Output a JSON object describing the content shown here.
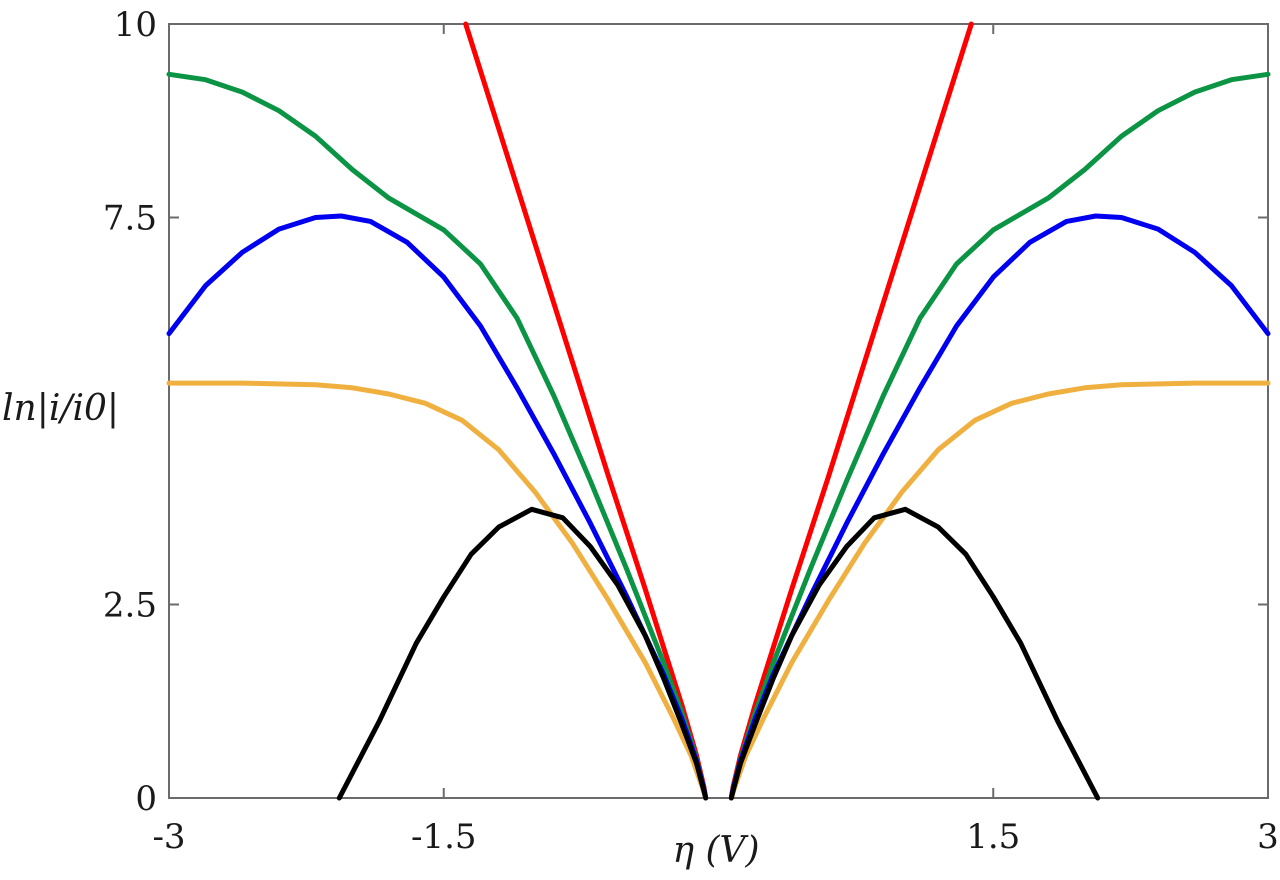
{
  "chart_data": {
    "type": "line",
    "title": "",
    "xlabel": "η  (V)",
    "ylabel": "ln|i/i0|",
    "xlim": [
      -3,
      3
    ],
    "ylim": [
      0,
      10
    ],
    "grid": false,
    "legend": null,
    "x_ticks": [
      -3,
      -1.5,
      1.5,
      3
    ],
    "x_tick_labels": [
      "-3",
      "-1.5",
      "1.5",
      "3"
    ],
    "y_ticks": [
      0,
      2.5,
      7.5,
      10
    ],
    "y_tick_labels": [
      "0",
      "2.5",
      "7.5",
      "10"
    ],
    "symmetric_about_zero": true,
    "series": [
      {
        "name": "red",
        "color": "#ff0000",
        "points": [
          [
            -1.38,
            10.0
          ],
          [
            -1.2,
            8.65
          ],
          [
            -1.0,
            7.15
          ],
          [
            -0.8,
            5.65
          ],
          [
            -0.6,
            4.15
          ],
          [
            -0.4,
            2.7
          ],
          [
            -0.3,
            1.95
          ],
          [
            -0.2,
            1.2
          ],
          [
            -0.12,
            0.55
          ],
          [
            -0.08,
            0.15
          ],
          [
            -0.07,
            0.0
          ]
        ]
      },
      {
        "name": "green",
        "color": "#0b9444",
        "points": [
          [
            -3.0,
            9.35
          ],
          [
            -2.8,
            9.28
          ],
          [
            -2.6,
            9.12
          ],
          [
            -2.4,
            8.88
          ],
          [
            -2.2,
            8.55
          ],
          [
            -2.0,
            8.12
          ],
          [
            -1.8,
            7.75
          ],
          [
            -1.5,
            7.34
          ],
          [
            -1.3,
            6.9
          ],
          [
            -1.1,
            6.2
          ],
          [
            -0.9,
            5.2
          ],
          [
            -0.7,
            4.1
          ],
          [
            -0.5,
            2.95
          ],
          [
            -0.3,
            1.75
          ],
          [
            -0.2,
            1.1
          ],
          [
            -0.12,
            0.5
          ],
          [
            -0.08,
            0.12
          ],
          [
            -0.07,
            0.0
          ]
        ]
      },
      {
        "name": "blue",
        "color": "#0000f0",
        "points": [
          [
            -3.0,
            6.0
          ],
          [
            -2.8,
            6.62
          ],
          [
            -2.6,
            7.05
          ],
          [
            -2.4,
            7.35
          ],
          [
            -2.2,
            7.5
          ],
          [
            -2.06,
            7.52
          ],
          [
            -1.9,
            7.45
          ],
          [
            -1.7,
            7.18
          ],
          [
            -1.5,
            6.73
          ],
          [
            -1.3,
            6.1
          ],
          [
            -1.1,
            5.3
          ],
          [
            -0.9,
            4.45
          ],
          [
            -0.7,
            3.55
          ],
          [
            -0.5,
            2.6
          ],
          [
            -0.3,
            1.6
          ],
          [
            -0.2,
            1.02
          ],
          [
            -0.12,
            0.48
          ],
          [
            -0.08,
            0.12
          ],
          [
            -0.07,
            0.0
          ]
        ]
      },
      {
        "name": "orange",
        "color": "#f0b040",
        "points": [
          [
            -3.0,
            5.36
          ],
          [
            -2.6,
            5.36
          ],
          [
            -2.2,
            5.34
          ],
          [
            -2.0,
            5.3
          ],
          [
            -1.8,
            5.22
          ],
          [
            -1.6,
            5.1
          ],
          [
            -1.4,
            4.88
          ],
          [
            -1.2,
            4.5
          ],
          [
            -1.0,
            3.95
          ],
          [
            -0.8,
            3.3
          ],
          [
            -0.6,
            2.55
          ],
          [
            -0.4,
            1.75
          ],
          [
            -0.25,
            1.05
          ],
          [
            -0.15,
            0.55
          ],
          [
            -0.09,
            0.15
          ],
          [
            -0.07,
            0.0
          ]
        ]
      },
      {
        "name": "black",
        "color": "#000000",
        "points": [
          [
            -2.07,
            0.0
          ],
          [
            -1.85,
            1.0
          ],
          [
            -1.65,
            2.0
          ],
          [
            -1.5,
            2.6
          ],
          [
            -1.35,
            3.15
          ],
          [
            -1.2,
            3.5
          ],
          [
            -1.02,
            3.73
          ],
          [
            -0.85,
            3.62
          ],
          [
            -0.7,
            3.25
          ],
          [
            -0.55,
            2.75
          ],
          [
            -0.4,
            2.1
          ],
          [
            -0.3,
            1.55
          ],
          [
            -0.2,
            0.95
          ],
          [
            -0.12,
            0.45
          ],
          [
            -0.08,
            0.1
          ],
          [
            -0.07,
            0.0
          ]
        ]
      }
    ]
  },
  "labels": {
    "x_axis": "η  (V)",
    "y_axis": "ln|i/i0|"
  }
}
